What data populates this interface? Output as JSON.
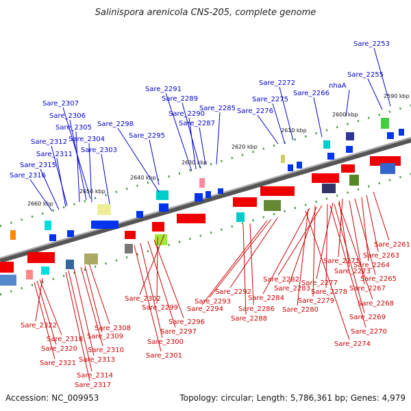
{
  "title": "Salinispora arenicola CNS-205, complete genome",
  "footer": {
    "accession": "Accession: NC_009953",
    "summary": "Topology: circular; Length: 5,786,361 bp; Genes: 4,979"
  },
  "colors": {
    "forward_label": "#0000cc",
    "reverse_label": "#cc0000",
    "backbone": "#777777",
    "tick": "#339933"
  },
  "scale_labels": [
    "2590 kbp",
    "2600 kbp",
    "2610 kbp",
    "2620 kbp",
    "2630 kbp",
    "2640 kbp",
    "2650 kbp",
    "2660 kbp"
  ],
  "forward_genes": [
    "Sare_2253",
    "Sare_2255",
    "nhaA",
    "Sare_2266",
    "Sare_2272",
    "Sare_2275",
    "Sare_2276",
    "Sare_2285",
    "Sare_2291",
    "Sare_2289",
    "Sare_2290",
    "Sare_2287",
    "Sare_2298",
    "Sare_2295",
    "Sare_2307",
    "Sare_2306",
    "Sare_2305",
    "Sare_2304",
    "Sare_2303",
    "Sare_2312",
    "Sare_2311",
    "Sare_2315",
    "Sare_2316"
  ],
  "reverse_genes": [
    "Sare_2261",
    "Sare_2263",
    "Sare_2264",
    "Sare_2265",
    "Sare_2271",
    "Sare_2273",
    "Sare_2267",
    "Sare_2277",
    "Sare_2278",
    "Sare_2282",
    "Sare_2283",
    "Sare_2284",
    "Sare_2279",
    "Sare_2280",
    "Sare_2268",
    "Sare_2269",
    "Sare_2270",
    "Sare_2274",
    "Sare_2292",
    "Sare_2293",
    "Sare_2294",
    "Sare_2286",
    "Sare_2288",
    "Sare_2302",
    "Sare_2299",
    "Sare_2296",
    "Sare_2297",
    "Sare_2300",
    "Sare_2301",
    "Sare_2308",
    "Sare_2309",
    "Sare_2310",
    "Sare_2313",
    "Sare_2314",
    "Sare_2317",
    "Sare_2322",
    "Sare_2318",
    "Sare_2320",
    "Sare_2321"
  ]
}
